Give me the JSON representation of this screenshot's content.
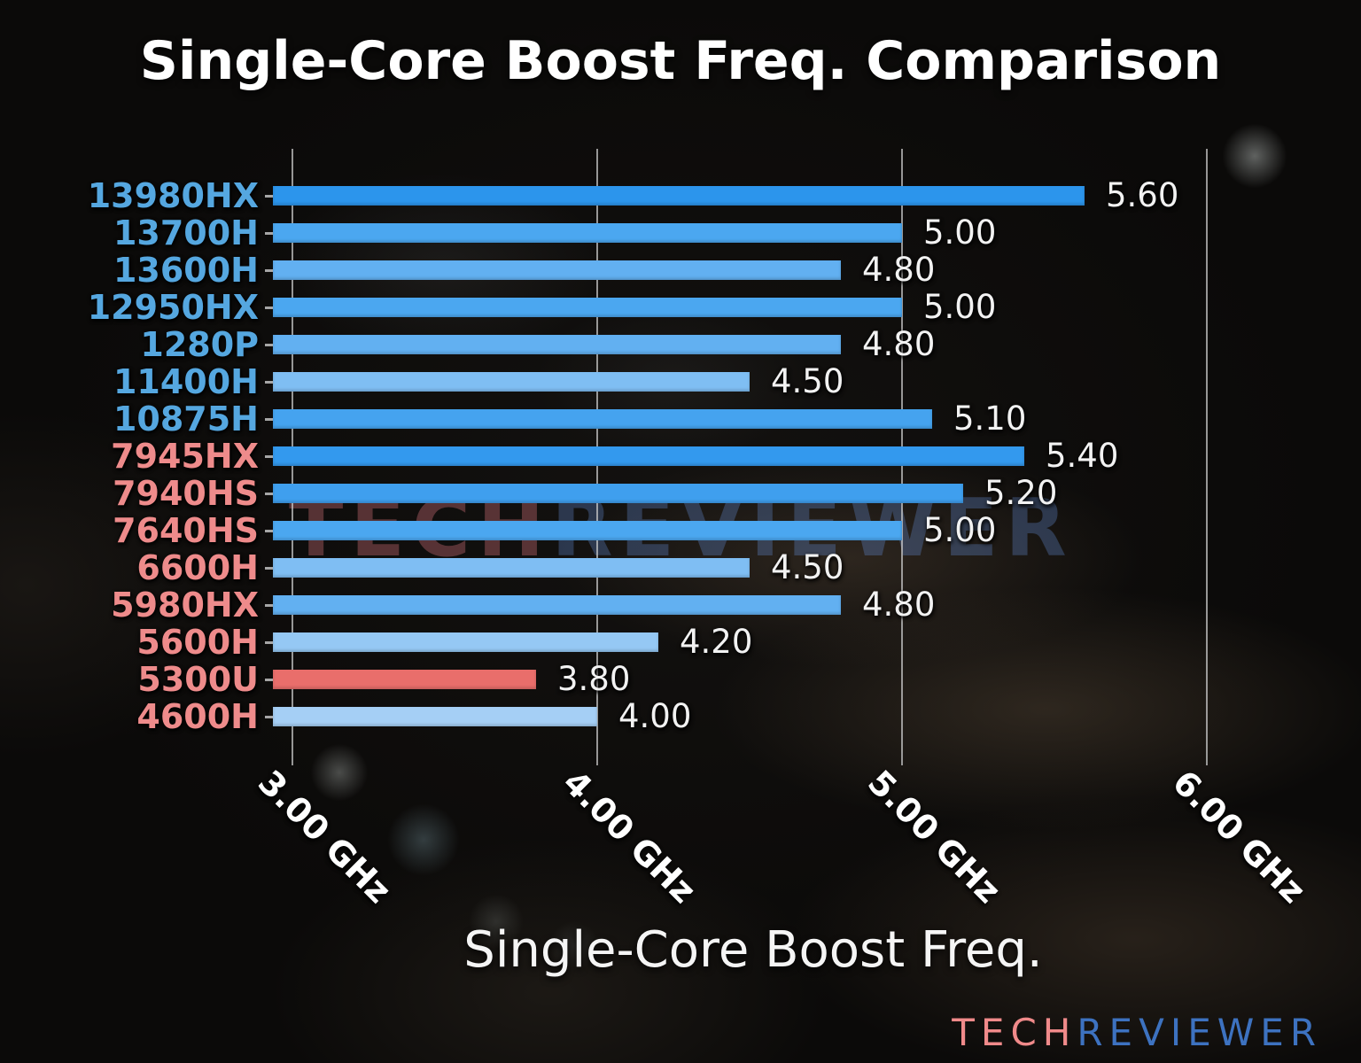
{
  "title": "Single-Core Boost Freq. Comparison",
  "watermark": {
    "tech": "TECH",
    "reviewer": "REVIEWER"
  },
  "logo": {
    "tech": "TECH",
    "reviewer": "REVIEWER"
  },
  "colors": {
    "intel_label": "#55a7e0",
    "amd_label": "#ee8b8b",
    "value_label": "#f2f2f2",
    "grid": "rgba(205,205,205,0.72)",
    "highlight_bar": "#e96e6b",
    "logo_tech": "#f08a8a",
    "logo_reviewer": "#3d72c0",
    "watermark_tech": "rgba(205,110,118,0.38)",
    "watermark_reviewer": "rgba(100,140,210,0.32)"
  },
  "chart_data": {
    "type": "bar",
    "orientation": "horizontal",
    "title": "Single-Core Boost Freq. Comparison",
    "xlabel": "Single-Core Boost Freq.",
    "ylabel": "",
    "categories": [
      "13980HX",
      "13700H",
      "13600H",
      "12950HX",
      "1280P",
      "11400H",
      "10875H",
      "7945HX",
      "7940HS",
      "7640HS",
      "6600H",
      "5980HX",
      "5600H",
      "5300U",
      "4600H"
    ],
    "values": [
      5.6,
      5.0,
      4.8,
      5.0,
      4.8,
      4.5,
      5.1,
      5.4,
      5.2,
      5.0,
      4.5,
      4.8,
      4.2,
      3.8,
      4.0
    ],
    "value_labels": [
      "5.60",
      "5.00",
      "4.80",
      "5.00",
      "4.80",
      "4.50",
      "5.10",
      "5.40",
      "5.20",
      "5.00",
      "4.50",
      "4.80",
      "4.20",
      "3.80",
      "4.00"
    ],
    "bar_colors": [
      "#2c95ec",
      "#4ba7f0",
      "#62b0f1",
      "#4ba7f0",
      "#62b0f1",
      "#7fbef3",
      "#45a3ef",
      "#3399ee",
      "#3f9fee",
      "#4ba7f0",
      "#7fbef3",
      "#62b0f1",
      "#95c8f4",
      "#e96e6b",
      "#a5cff5"
    ],
    "category_colors": [
      "#55a7e0",
      "#55a7e0",
      "#55a7e0",
      "#55a7e0",
      "#55a7e0",
      "#55a7e0",
      "#55a7e0",
      "#ee8b8b",
      "#ee8b8b",
      "#ee8b8b",
      "#ee8b8b",
      "#ee8b8b",
      "#ee8b8b",
      "#ee8b8b",
      "#ee8b8b"
    ],
    "highlighted_category": "5300U",
    "x_ticks": [
      {
        "value": 3.0,
        "label": "3.00 GHz"
      },
      {
        "value": 4.0,
        "label": "4.00 GHz"
      },
      {
        "value": 5.0,
        "label": "5.00 GHz"
      },
      {
        "value": 6.0,
        "label": "6.00 GHz"
      }
    ],
    "xlim": [
      2.936,
      6.25
    ],
    "grid": true,
    "legend": false
  }
}
